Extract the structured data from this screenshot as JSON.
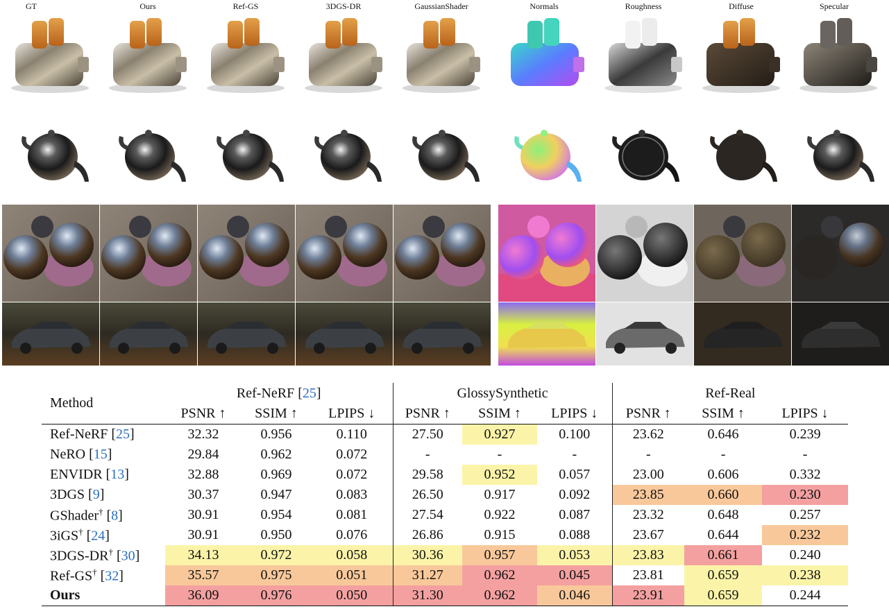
{
  "figure": {
    "column_labels": [
      "GT",
      "Ours",
      "Ref-GS",
      "3DGS-DR",
      "GaussianShader",
      "Normals",
      "Roughness",
      "Diffuse",
      "Specular"
    ]
  },
  "table": {
    "groups": [
      {
        "name": "Ref-NeRF",
        "ref": "25"
      },
      {
        "name": "GlossySynthetic",
        "ref": ""
      },
      {
        "name": "Ref-Real",
        "ref": ""
      }
    ],
    "method_header": "Method",
    "metric_headers": [
      "PSNR ↑",
      "SSIM ↑",
      "LPIPS ↓",
      "PSNR ↑",
      "SSIM ↑",
      "LPIPS ↓",
      "PSNR ↑",
      "SSIM ↑",
      "LPIPS ↓"
    ],
    "rows": [
      {
        "name": "Ref-NeRF",
        "dagger": "",
        "ref": "25",
        "values": [
          "32.32",
          "0.956",
          "0.110",
          "27.50",
          "0.927",
          "0.100",
          "23.62",
          "0.646",
          "0.239"
        ]
      },
      {
        "name": "NeRO",
        "dagger": "",
        "ref": "15",
        "values": [
          "29.84",
          "0.962",
          "0.072",
          "-",
          "-",
          "-",
          "-",
          "-",
          "-"
        ]
      },
      {
        "name": "ENVIDR",
        "dagger": "",
        "ref": "13",
        "values": [
          "32.88",
          "0.969",
          "0.072",
          "29.58",
          "0.952",
          "0.057",
          "23.00",
          "0.606",
          "0.332"
        ]
      },
      {
        "name": "3DGS",
        "dagger": "",
        "ref": "9",
        "values": [
          "30.37",
          "0.947",
          "0.083",
          "26.50",
          "0.917",
          "0.092",
          "23.85",
          "0.660",
          "0.230"
        ]
      },
      {
        "name": "GShader",
        "dagger": "†",
        "ref": "8",
        "values": [
          "30.91",
          "0.954",
          "0.081",
          "27.54",
          "0.922",
          "0.087",
          "23.32",
          "0.648",
          "0.257"
        ]
      },
      {
        "name": "3iGS",
        "dagger": "†",
        "ref": "24",
        "values": [
          "30.91",
          "0.950",
          "0.076",
          "26.86",
          "0.915",
          "0.088",
          "23.67",
          "0.644",
          "0.232"
        ]
      },
      {
        "name": "3DGS-DR",
        "dagger": "†",
        "ref": "30",
        "values": [
          "34.13",
          "0.972",
          "0.058",
          "30.36",
          "0.957",
          "0.053",
          "23.83",
          "0.661",
          "0.240"
        ]
      },
      {
        "name": "Ref-GS",
        "dagger": "†",
        "ref": "32",
        "values": [
          "35.57",
          "0.975",
          "0.051",
          "31.27",
          "0.962",
          "0.045",
          "23.81",
          "0.659",
          "0.238"
        ]
      },
      {
        "name": "Ours",
        "dagger": "",
        "ref": "",
        "values": [
          "36.09",
          "0.976",
          "0.050",
          "31.30",
          "0.962",
          "0.046",
          "23.91",
          "0.659",
          "0.244"
        ]
      }
    ],
    "highlights": {
      "red": "#f4a0a0",
      "orange": "#f9c89a",
      "yellow": "#fbf4a8",
      "cells": [
        [
          "",
          "",
          "",
          "",
          "yellow",
          "",
          "",
          "",
          ""
        ],
        [
          "",
          "",
          "",
          "",
          "",
          "",
          "",
          "",
          ""
        ],
        [
          "",
          "",
          "",
          "",
          "yellow",
          "",
          "",
          "",
          ""
        ],
        [
          "",
          "",
          "",
          "",
          "",
          "",
          "orange",
          "orange",
          "red"
        ],
        [
          "",
          "",
          "",
          "",
          "",
          "",
          "",
          "",
          ""
        ],
        [
          "",
          "",
          "",
          "",
          "",
          "",
          "",
          "",
          "orange"
        ],
        [
          "yellow",
          "yellow",
          "yellow",
          "yellow",
          "orange",
          "yellow",
          "yellow",
          "red",
          ""
        ],
        [
          "orange",
          "orange",
          "orange",
          "orange",
          "red",
          "red",
          "",
          "yellow",
          "yellow"
        ],
        [
          "red",
          "red",
          "red",
          "red",
          "red",
          "orange",
          "red",
          "yellow",
          ""
        ]
      ]
    }
  }
}
